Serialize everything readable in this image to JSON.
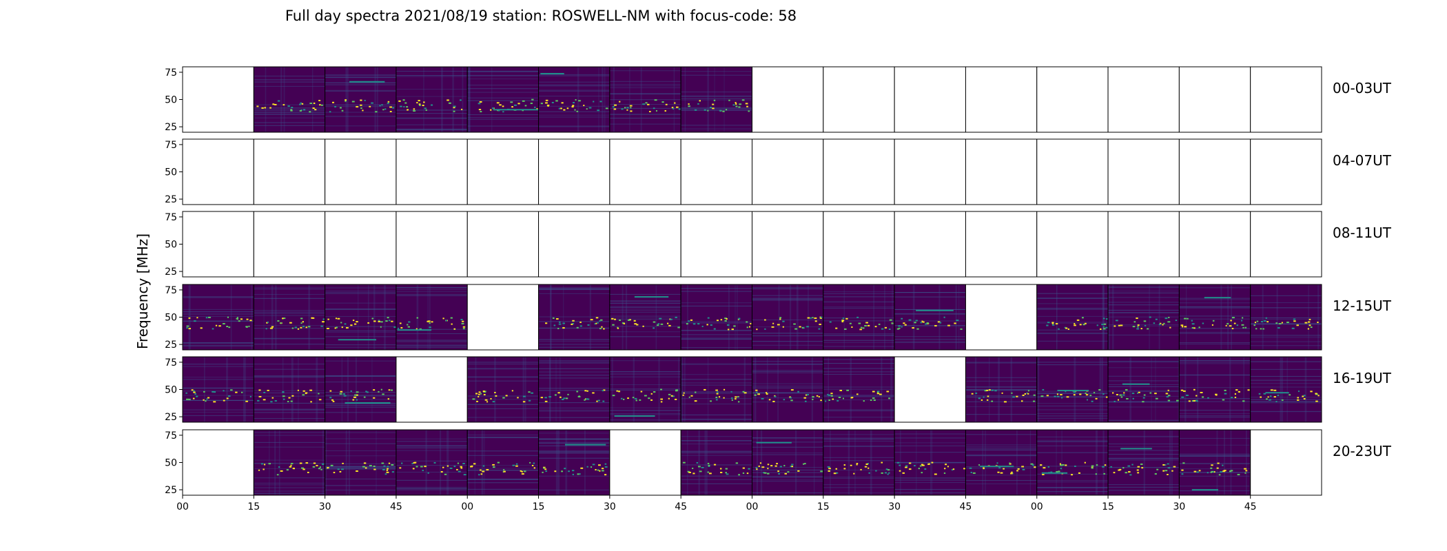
{
  "title": "Full day spectra 2021/08/19 station: ROSWELL-NM with focus-code: 58",
  "chart_data": {
    "type": "heatmap",
    "title": "Full day spectra 2021/08/19 station: ROSWELL-NM with focus-code: 58",
    "ylabel": "Frequency [MHz]",
    "xlabel": "",
    "ylim": [
      20,
      80
    ],
    "yticks": [
      25,
      50,
      75
    ],
    "xticks": [
      "00",
      "15",
      "30",
      "45",
      "00",
      "15",
      "30",
      "45",
      "00",
      "15",
      "30",
      "45",
      "00",
      "15",
      "30",
      "45"
    ],
    "colormap": "viridis",
    "colors": {
      "background": "#440154",
      "mid": "#3b528b",
      "teal": "#21918c",
      "green": "#5ec962",
      "yellow": "#fde725"
    },
    "row_labels": [
      "00-03UT",
      "04-07UT",
      "08-11UT",
      "12-15UT",
      "16-19UT",
      "20-23UT"
    ],
    "panels_per_row": 16,
    "panel_minutes": 15,
    "availability": [
      [
        0,
        1,
        1,
        1,
        1,
        1,
        1,
        1,
        0,
        0,
        0,
        0,
        0,
        0,
        0,
        0
      ],
      [
        0,
        0,
        0,
        0,
        0,
        0,
        0,
        0,
        0,
        0,
        0,
        0,
        0,
        0,
        0,
        0
      ],
      [
        0,
        0,
        0,
        0,
        0,
        0,
        0,
        0,
        0,
        0,
        0,
        0,
        0,
        0,
        0,
        0
      ],
      [
        1,
        1,
        1,
        1,
        0,
        1,
        1,
        1,
        1,
        1,
        1,
        0,
        1,
        1,
        1,
        1
      ],
      [
        1,
        1,
        1,
        0,
        1,
        1,
        1,
        1,
        1,
        1,
        0,
        1,
        1,
        1,
        1,
        1
      ],
      [
        0,
        1,
        1,
        1,
        1,
        1,
        0,
        1,
        1,
        1,
        1,
        1,
        1,
        1,
        1,
        0
      ]
    ],
    "grid": false
  }
}
